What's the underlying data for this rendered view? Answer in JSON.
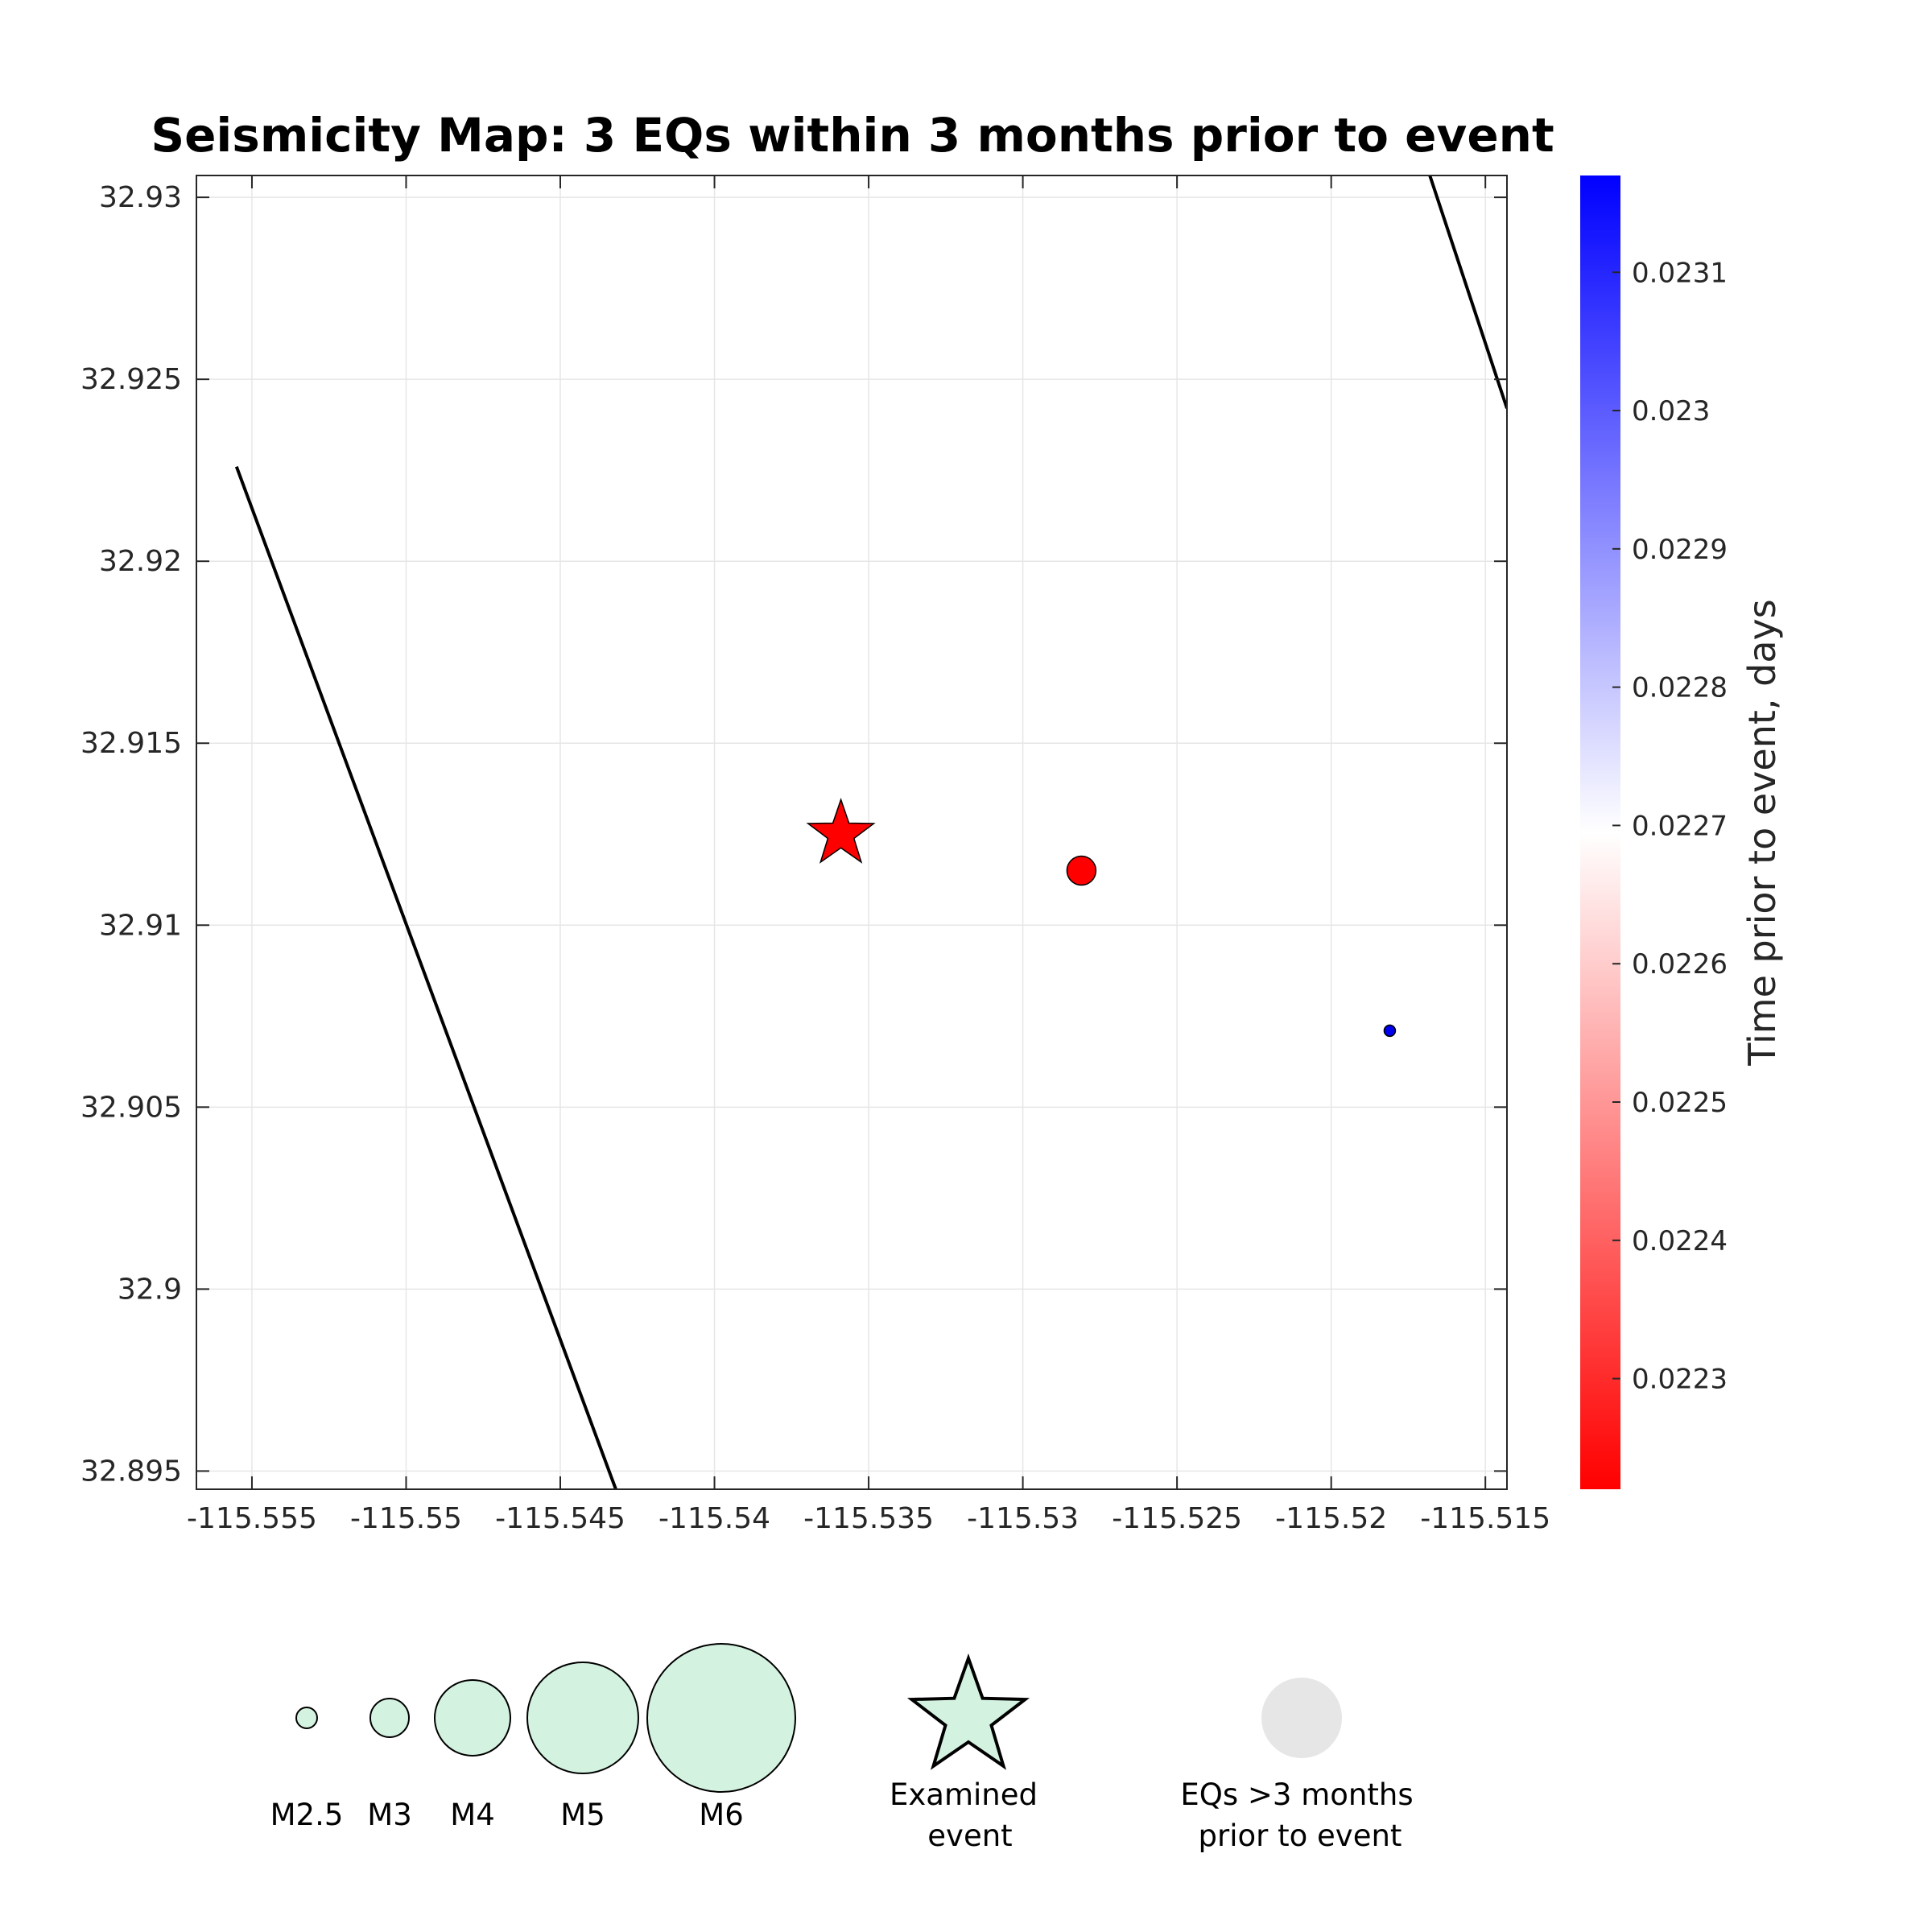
{
  "chart_data": {
    "type": "scatter",
    "title": "Seismicity Map: 3 EQs within 3 months prior to event",
    "xlabel": "",
    "ylabel": "",
    "xlim": [
      -115.5568,
      -115.5143
    ],
    "ylim": [
      32.8945,
      32.9306
    ],
    "x_ticks": [
      -115.555,
      -115.55,
      -115.545,
      -115.54,
      -115.535,
      -115.53,
      -115.525,
      -115.52,
      -115.515
    ],
    "x_tick_labels": [
      "-115.555",
      "-115.55",
      "-115.545",
      "-115.54",
      "-115.535",
      "-115.53",
      "-115.525",
      "-115.52",
      "-115.515"
    ],
    "y_ticks": [
      32.895,
      32.9,
      32.905,
      32.91,
      32.915,
      32.92,
      32.925,
      32.93
    ],
    "y_tick_labels": [
      "32.895",
      "32.9",
      "32.905",
      "32.91",
      "32.915",
      "32.92",
      "32.925",
      "32.93"
    ],
    "grid": true,
    "examined_event": {
      "lon": -115.5359,
      "lat": 32.9125,
      "color": "#ff0000",
      "marker": "star"
    },
    "events": [
      {
        "lon": -115.5281,
        "lat": 32.9115,
        "time_prior_days": 0.02223,
        "color": "#ff0000"
      },
      {
        "lon": -115.5181,
        "lat": 32.9071,
        "time_prior_days": 0.02315,
        "color": "#0000ee"
      }
    ],
    "faults": [
      {
        "lon": [
          -115.5555,
          -115.5432
        ],
        "lat": [
          32.9226,
          32.8945
        ]
      },
      {
        "lon": [
          -115.5168,
          -115.5143
        ],
        "lat": [
          32.9306,
          32.9242
        ]
      }
    ],
    "colorbar": {
      "label": "Time prior to event, days",
      "range": [
        0.02222,
        0.02317
      ],
      "ticks": [
        0.0223,
        0.0224,
        0.0225,
        0.0226,
        0.0227,
        0.0228,
        0.0229,
        0.023,
        0.0231
      ],
      "tick_labels": [
        "0.0223",
        "0.0224",
        "0.0225",
        "0.0226",
        "0.0227",
        "0.0228",
        "0.0229",
        "0.023",
        "0.0231"
      ],
      "colors": [
        "#ff0000",
        "#ffffff",
        "#0000ff"
      ]
    },
    "legend": {
      "magnitudes": [
        "M2.5",
        "M3",
        "M4",
        "M5",
        "M6"
      ],
      "examined_label_line1": "Examined",
      "examined_label_line2": "event",
      "old_label_line1": "EQs >3 months",
      "old_label_line2": "prior to event",
      "fill_color": "#d4f2e0",
      "old_color": "#e6e6e6"
    }
  }
}
